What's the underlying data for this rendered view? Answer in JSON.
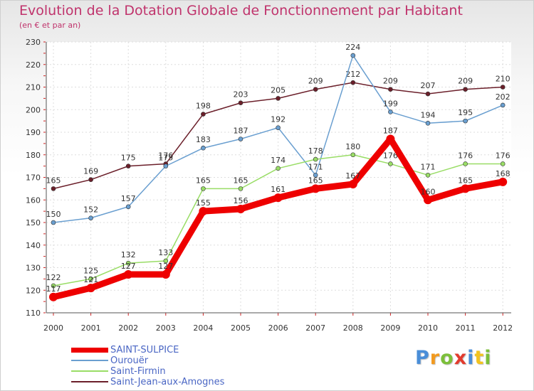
{
  "title": "Evolution de la Dotation Globale de Fonctionnement par Habitant",
  "subtitle": "(en € et par an)",
  "chart_data": {
    "type": "line",
    "title": "Evolution de la Dotation Globale de Fonctionnement par Habitant",
    "ylabel": "(en € et par an)",
    "xlabel": "",
    "ylim": [
      110,
      230
    ],
    "yticks": [
      110,
      120,
      130,
      140,
      150,
      160,
      170,
      180,
      190,
      200,
      210,
      220,
      230
    ],
    "categories": [
      "2000",
      "2001",
      "2002",
      "2003",
      "2004",
      "2005",
      "2006",
      "2007",
      "2008",
      "2009",
      "2010",
      "2011",
      "2012"
    ],
    "grid": true,
    "legend_position": "bottom-left",
    "series": [
      {
        "name": "Saint-Jean-aux-Amognes",
        "color": "#6b1f2a",
        "values": [
          165,
          169,
          175,
          176,
          198,
          203,
          205,
          209,
          212,
          209,
          207,
          209,
          210
        ]
      },
      {
        "name": "Ourouër",
        "color": "#6a9fd0",
        "values": [
          150,
          152,
          157,
          175,
          183,
          187,
          192,
          171,
          224,
          199,
          194,
          195,
          202
        ]
      },
      {
        "name": "Saint-Firmin",
        "color": "#99dd66",
        "values": [
          122,
          125,
          132,
          133,
          165,
          165,
          174,
          178,
          180,
          176,
          171,
          176,
          176
        ]
      },
      {
        "name": "SAINT-SULPICE",
        "color": "#ee0000",
        "values": [
          117,
          121,
          127,
          127,
          155,
          156,
          161,
          165,
          167,
          187,
          160,
          165,
          168
        ]
      }
    ],
    "legend": [
      "SAINT-SULPICE",
      "Ourouër",
      "Saint-Firmin",
      "Saint-Jean-aux-Amognes"
    ]
  },
  "logo": {
    "letters": [
      "P",
      "r",
      "o",
      "x",
      "i",
      "t",
      "i"
    ],
    "colors": [
      "#4a8ed8",
      "#f29a1f",
      "#7cbf3a",
      "#e23b2e",
      "#4a8ed8",
      "#f2c31f",
      "#7cbf3a"
    ]
  }
}
